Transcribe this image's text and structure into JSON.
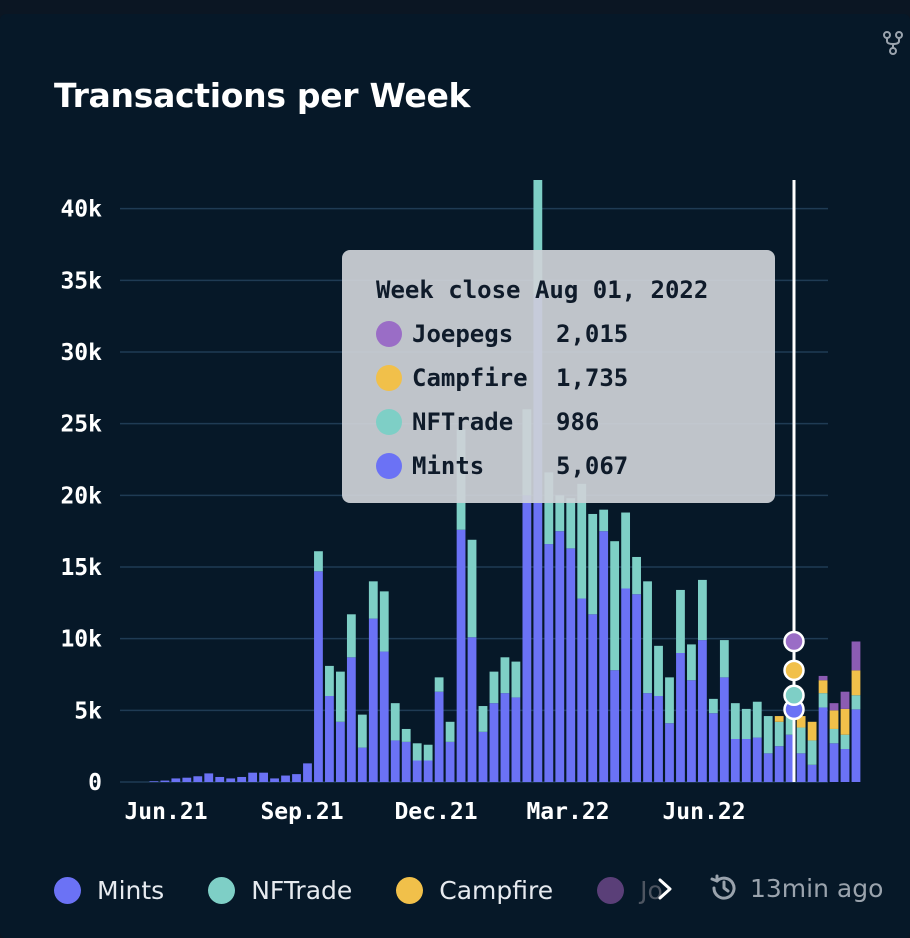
{
  "colors": {
    "mints": "#6b72f5",
    "nftrade": "#7ecfc6",
    "campfire": "#f1c04a",
    "joepegs": "#8c5cb3",
    "grid": "#1f3b54"
  },
  "icons": {
    "fork": "fork-icon",
    "chevron": "chevron-right-icon",
    "clock": "history-clock-icon"
  },
  "chart_data": {
    "type": "bar",
    "stacked": true,
    "title": "Transactions per Week",
    "ylim": [
      0,
      42000
    ],
    "y_ticks": [
      "0",
      "5k",
      "10k",
      "15k",
      "20k",
      "25k",
      "30k",
      "35k",
      "40k"
    ],
    "x_ticks": [
      "Jun.21",
      "Sep.21",
      "Dec.21",
      "Mar.22",
      "Jun.22"
    ],
    "grid": true,
    "legend_position": "bottom-left",
    "series": [
      {
        "name": "Mints",
        "values": [
          50,
          100,
          250,
          300,
          400,
          600,
          350,
          250,
          350,
          650,
          650,
          250,
          450,
          550,
          1300,
          14700,
          6000,
          4200,
          8700,
          2400,
          11400,
          9100,
          2900,
          2800,
          1500,
          1500,
          6300,
          2800,
          17600,
          10100,
          3500,
          5500,
          6200,
          5900,
          20000,
          34000,
          16600,
          17500,
          16300,
          12800,
          11700,
          17500,
          7800,
          13500,
          13100,
          6200,
          6000,
          4100,
          9000,
          7100,
          9900,
          4800,
          7300,
          3000,
          3000,
          3100,
          2000,
          2500,
          3300,
          2000,
          1200,
          5200,
          2700,
          2300,
          5067
        ]
      },
      {
        "name": "NFTrade",
        "values": [
          0,
          0,
          0,
          0,
          0,
          0,
          0,
          0,
          0,
          0,
          0,
          0,
          0,
          0,
          0,
          1400,
          2100,
          3500,
          3000,
          2300,
          2600,
          4200,
          2600,
          900,
          1200,
          1100,
          1000,
          1400,
          7000,
          6800,
          1800,
          2200,
          2500,
          2500,
          6000,
          8000,
          5000,
          2500,
          3500,
          8000,
          7000,
          1500,
          9000,
          5300,
          2600,
          7800,
          3500,
          3200,
          4400,
          2500,
          4200,
          1000,
          2600,
          2500,
          2100,
          2500,
          2600,
          1700,
          1800,
          1800,
          1700,
          1000,
          1000,
          1000,
          986
        ]
      },
      {
        "name": "Campfire",
        "values": [
          0,
          0,
          0,
          0,
          0,
          0,
          0,
          0,
          0,
          0,
          0,
          0,
          0,
          0,
          0,
          0,
          0,
          0,
          0,
          0,
          0,
          0,
          0,
          0,
          0,
          0,
          0,
          0,
          0,
          0,
          0,
          0,
          0,
          0,
          0,
          0,
          0,
          0,
          0,
          0,
          0,
          0,
          0,
          0,
          0,
          0,
          0,
          0,
          0,
          0,
          0,
          0,
          0,
          0,
          0,
          0,
          0,
          400,
          400,
          800,
          1300,
          900,
          1300,
          1800,
          1735
        ]
      },
      {
        "name": "Joepegs",
        "values": [
          0,
          0,
          0,
          0,
          0,
          0,
          0,
          0,
          0,
          0,
          0,
          0,
          0,
          0,
          0,
          0,
          0,
          0,
          0,
          0,
          0,
          0,
          0,
          0,
          0,
          0,
          0,
          0,
          0,
          0,
          0,
          0,
          0,
          0,
          0,
          0,
          0,
          0,
          0,
          0,
          0,
          0,
          0,
          0,
          0,
          0,
          0,
          0,
          0,
          0,
          0,
          0,
          0,
          0,
          0,
          0,
          0,
          0,
          0,
          0,
          0,
          300,
          500,
          1200,
          2015
        ]
      }
    ]
  },
  "tooltip": {
    "title": "Week close Aug 01, 2022",
    "rows": [
      {
        "name": "Joepegs",
        "value": "2,015"
      },
      {
        "name": "Campfire",
        "value": "1,735"
      },
      {
        "name": "NFTrade",
        "value": "986"
      },
      {
        "name": "Mints",
        "value": "5,067"
      }
    ]
  },
  "legend": {
    "items": [
      "Mints",
      "NFTrade",
      "Campfire",
      "Jo"
    ]
  },
  "updated": {
    "text": "13min ago"
  }
}
